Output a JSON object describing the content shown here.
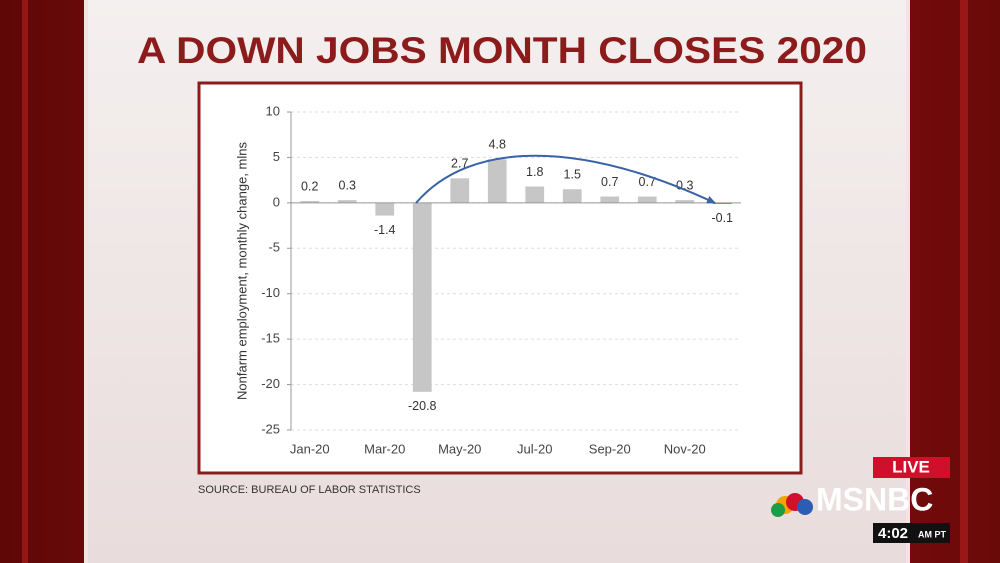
{
  "headline": "A DOWN JOBS MONTH CLOSES 2020",
  "source": "SOURCE: BUREAU OF LABOR STATISTICS",
  "live": "LIVE",
  "network": "MSNBC",
  "time": "4:02",
  "time_zone": "AM PT",
  "chart_data": {
    "type": "bar",
    "y_label": "Nonfarm employment, monthly change, mlns",
    "categories": [
      "Jan-20",
      null,
      "Mar-20",
      null,
      "May-20",
      null,
      "Jul-20",
      null,
      "Sep-20",
      null,
      "Nov-20",
      null
    ],
    "values": [
      0.2,
      0.3,
      -1.4,
      -20.8,
      2.7,
      4.8,
      1.8,
      1.5,
      0.7,
      0.7,
      0.3,
      -0.1
    ],
    "colors": [
      "#c6c6c6",
      "#c6c6c6",
      "#c6c6c6",
      "#c6c6c6",
      "#c6c6c6",
      "#c6c6c6",
      "#c6c6c6",
      "#c6c6c6",
      "#c6c6c6",
      "#c6c6c6",
      "#c6c6c6",
      "#d0312d"
    ],
    "ylim": [
      -25,
      10
    ],
    "yticks": [
      -25,
      -20,
      -15,
      -10,
      -5,
      0,
      5,
      10
    ],
    "grid": true
  }
}
